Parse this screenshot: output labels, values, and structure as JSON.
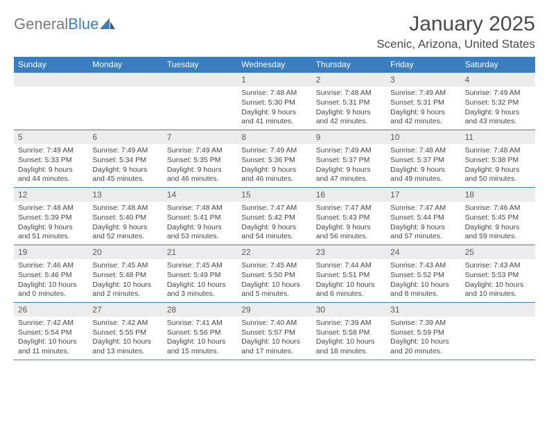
{
  "logo": {
    "text_a": "General",
    "text_b": "Blue"
  },
  "title": "January 2025",
  "location": "Scenic, Arizona, United States",
  "style": {
    "header_bg": "#3a7ebf",
    "header_fg": "#ffffff",
    "daynum_bg": "#ececec",
    "daynum_fg": "#5a5a5a",
    "body_fg": "#444444",
    "page_bg": "#ffffff",
    "divider": "#3a7ebf",
    "title_fg": "#4a4a4a",
    "logo_gray": "#7a7a7a",
    "logo_blue": "#3a7ebf",
    "month_title_fontsize": 30,
    "location_fontsize": 17,
    "dow_fontsize": 12,
    "daynum_fontsize": 12,
    "body_fontsize": 10.5
  },
  "days_of_week": [
    "Sunday",
    "Monday",
    "Tuesday",
    "Wednesday",
    "Thursday",
    "Friday",
    "Saturday"
  ],
  "weeks": [
    [
      null,
      null,
      null,
      {
        "n": "1",
        "sunrise": "7:48 AM",
        "sunset": "5:30 PM",
        "daylight": "9 hours and 41 minutes."
      },
      {
        "n": "2",
        "sunrise": "7:48 AM",
        "sunset": "5:31 PM",
        "daylight": "9 hours and 42 minutes."
      },
      {
        "n": "3",
        "sunrise": "7:49 AM",
        "sunset": "5:31 PM",
        "daylight": "9 hours and 42 minutes."
      },
      {
        "n": "4",
        "sunrise": "7:49 AM",
        "sunset": "5:32 PM",
        "daylight": "9 hours and 43 minutes."
      }
    ],
    [
      {
        "n": "5",
        "sunrise": "7:49 AM",
        "sunset": "5:33 PM",
        "daylight": "9 hours and 44 minutes."
      },
      {
        "n": "6",
        "sunrise": "7:49 AM",
        "sunset": "5:34 PM",
        "daylight": "9 hours and 45 minutes."
      },
      {
        "n": "7",
        "sunrise": "7:49 AM",
        "sunset": "5:35 PM",
        "daylight": "9 hours and 46 minutes."
      },
      {
        "n": "8",
        "sunrise": "7:49 AM",
        "sunset": "5:36 PM",
        "daylight": "9 hours and 46 minutes."
      },
      {
        "n": "9",
        "sunrise": "7:49 AM",
        "sunset": "5:37 PM",
        "daylight": "9 hours and 47 minutes."
      },
      {
        "n": "10",
        "sunrise": "7:48 AM",
        "sunset": "5:37 PM",
        "daylight": "9 hours and 49 minutes."
      },
      {
        "n": "11",
        "sunrise": "7:48 AM",
        "sunset": "5:38 PM",
        "daylight": "9 hours and 50 minutes."
      }
    ],
    [
      {
        "n": "12",
        "sunrise": "7:48 AM",
        "sunset": "5:39 PM",
        "daylight": "9 hours and 51 minutes."
      },
      {
        "n": "13",
        "sunrise": "7:48 AM",
        "sunset": "5:40 PM",
        "daylight": "9 hours and 52 minutes."
      },
      {
        "n": "14",
        "sunrise": "7:48 AM",
        "sunset": "5:41 PM",
        "daylight": "9 hours and 53 minutes."
      },
      {
        "n": "15",
        "sunrise": "7:47 AM",
        "sunset": "5:42 PM",
        "daylight": "9 hours and 54 minutes."
      },
      {
        "n": "16",
        "sunrise": "7:47 AM",
        "sunset": "5:43 PM",
        "daylight": "9 hours and 56 minutes."
      },
      {
        "n": "17",
        "sunrise": "7:47 AM",
        "sunset": "5:44 PM",
        "daylight": "9 hours and 57 minutes."
      },
      {
        "n": "18",
        "sunrise": "7:46 AM",
        "sunset": "5:45 PM",
        "daylight": "9 hours and 59 minutes."
      }
    ],
    [
      {
        "n": "19",
        "sunrise": "7:46 AM",
        "sunset": "5:46 PM",
        "daylight": "10 hours and 0 minutes."
      },
      {
        "n": "20",
        "sunrise": "7:45 AM",
        "sunset": "5:48 PM",
        "daylight": "10 hours and 2 minutes."
      },
      {
        "n": "21",
        "sunrise": "7:45 AM",
        "sunset": "5:49 PM",
        "daylight": "10 hours and 3 minutes."
      },
      {
        "n": "22",
        "sunrise": "7:45 AM",
        "sunset": "5:50 PM",
        "daylight": "10 hours and 5 minutes."
      },
      {
        "n": "23",
        "sunrise": "7:44 AM",
        "sunset": "5:51 PM",
        "daylight": "10 hours and 6 minutes."
      },
      {
        "n": "24",
        "sunrise": "7:43 AM",
        "sunset": "5:52 PM",
        "daylight": "10 hours and 8 minutes."
      },
      {
        "n": "25",
        "sunrise": "7:43 AM",
        "sunset": "5:53 PM",
        "daylight": "10 hours and 10 minutes."
      }
    ],
    [
      {
        "n": "26",
        "sunrise": "7:42 AM",
        "sunset": "5:54 PM",
        "daylight": "10 hours and 11 minutes."
      },
      {
        "n": "27",
        "sunrise": "7:42 AM",
        "sunset": "5:55 PM",
        "daylight": "10 hours and 13 minutes."
      },
      {
        "n": "28",
        "sunrise": "7:41 AM",
        "sunset": "5:56 PM",
        "daylight": "10 hours and 15 minutes."
      },
      {
        "n": "29",
        "sunrise": "7:40 AM",
        "sunset": "5:57 PM",
        "daylight": "10 hours and 17 minutes."
      },
      {
        "n": "30",
        "sunrise": "7:39 AM",
        "sunset": "5:58 PM",
        "daylight": "10 hours and 18 minutes."
      },
      {
        "n": "31",
        "sunrise": "7:39 AM",
        "sunset": "5:59 PM",
        "daylight": "10 hours and 20 minutes."
      },
      null
    ]
  ],
  "labels": {
    "sunrise_prefix": "Sunrise: ",
    "sunset_prefix": "Sunset: ",
    "daylight_prefix": "Daylight: "
  }
}
